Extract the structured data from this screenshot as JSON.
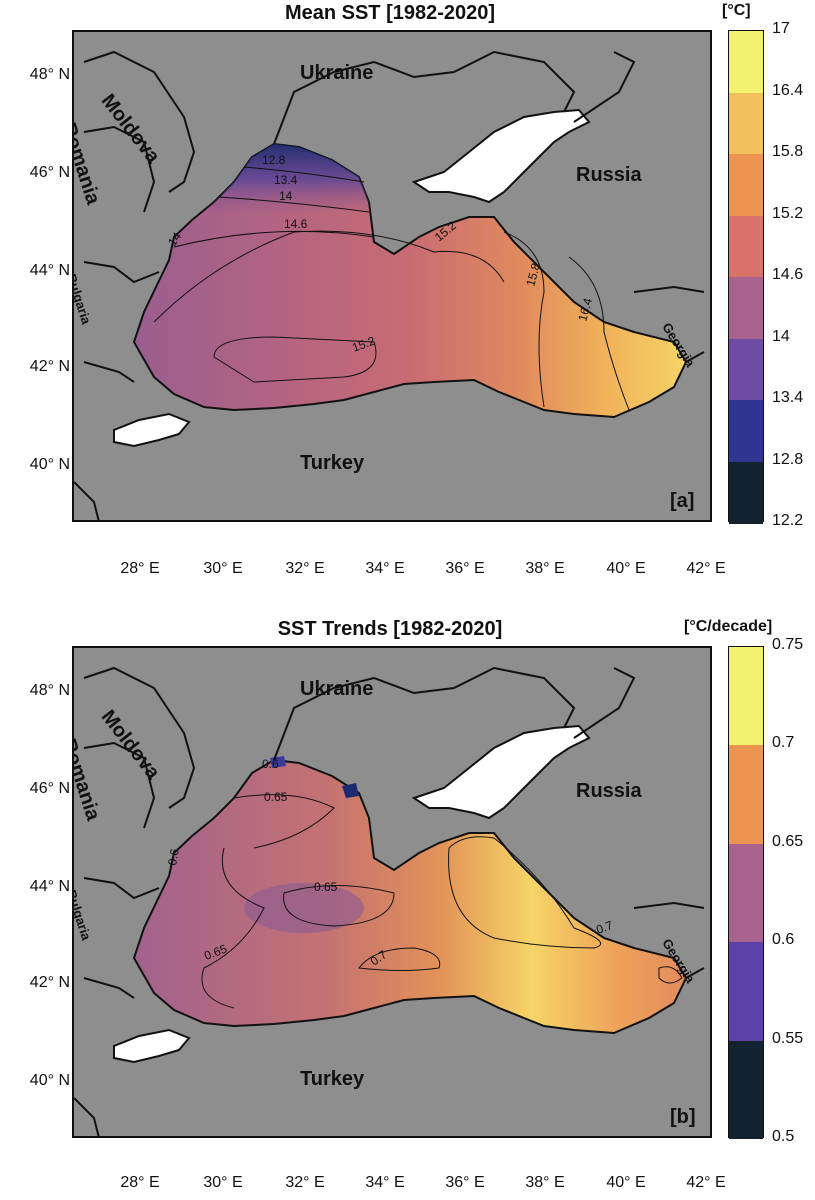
{
  "panels": [
    {
      "title": "Mean SST [1982-2020]",
      "letter": "[a]",
      "unit": "[°C]",
      "colorbar_ticks": [
        "17",
        "16.4",
        "15.8",
        "15.2",
        "14.6",
        "14",
        "13.4",
        "12.8",
        "12.2"
      ],
      "colorbar_colors": [
        "#f2f270",
        "#f2c05a",
        "#eb9551",
        "#d9726a",
        "#a7628d",
        "#6f4ca4",
        "#2f3591",
        "#12222e"
      ],
      "contour_labels": [
        "12.8",
        "13.4",
        "14",
        "14",
        "14.6",
        "15.2",
        "15.8",
        "16.4",
        "15.2"
      ]
    },
    {
      "title": "SST Trends [1982-2020]",
      "letter": "[b]",
      "unit": "[°C/decade]",
      "colorbar_ticks": [
        "0.75",
        "0.7",
        "0.65",
        "0.6",
        "0.55",
        "0.5"
      ],
      "colorbar_colors": [
        "#f2f270",
        "#eb9551",
        "#a7628d",
        "#5b42a8",
        "#12222e"
      ],
      "contour_labels": [
        "0.65",
        "0.65",
        "0.65",
        "0.7",
        "0.7",
        "0.6",
        "0.6"
      ]
    }
  ],
  "lat_labels": [
    "48° N",
    "46° N",
    "44° N",
    "42° N",
    "40° N"
  ],
  "lon_labels": [
    "28° E",
    "30° E",
    "32° E",
    "34° E",
    "36° E",
    "38° E",
    "40° E",
    "42° E"
  ],
  "countries": {
    "ukraine": "Ukraine",
    "moldova": "Moldova",
    "romania": "Romania",
    "russia": "Russia",
    "bulgaria": "Bulgaria",
    "georgia": "Georgia",
    "turkey": "Turkey"
  },
  "colors": {
    "land": "#8e8e8e",
    "azov_white": "#ffffff",
    "border": "#111111"
  }
}
